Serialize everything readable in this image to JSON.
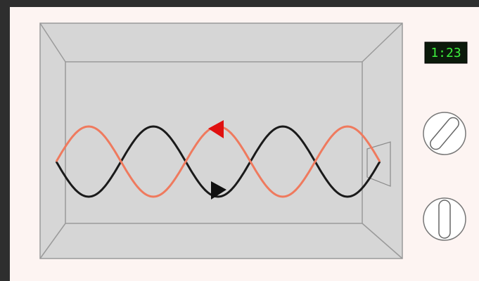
{
  "display": {
    "time": "1:23"
  }
}
